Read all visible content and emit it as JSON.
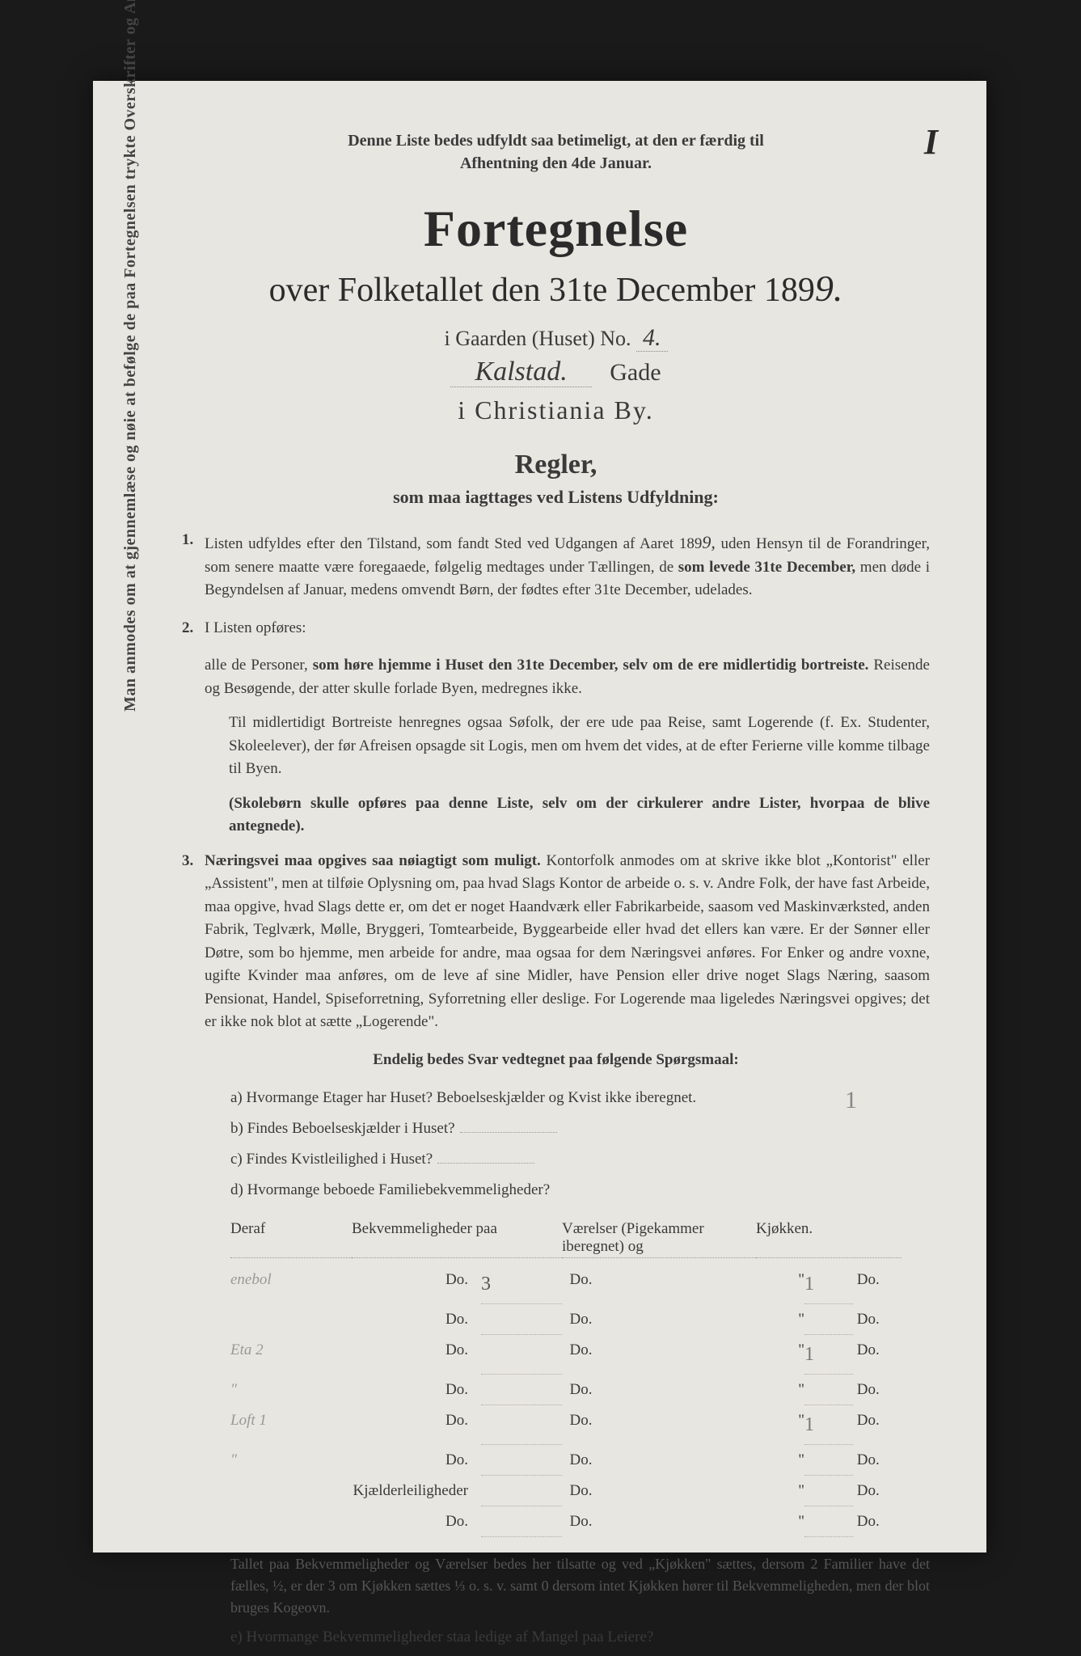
{
  "corner_number": "I",
  "top_note_line1": "Denne Liste bedes udfyldt saa betimeligt, at den er færdig til",
  "top_note_line2": "Afhentning den 4de Januar.",
  "title_main": "Fortegnelse",
  "title_over": "over Folketallet den 31te December 189",
  "year_digit": "9.",
  "gaard_prefix": "i Gaarden (Huset) No.",
  "gaard_no": "4.",
  "street_name": "Kalstad.",
  "street_suffix": "Gade",
  "city_line": "i Christiania By.",
  "regler_head": "Regler,",
  "regler_sub": "som maa iagttages ved Listens Udfyldning:",
  "rule1_num": "1.",
  "rule1_text_a": "Listen udfyldes efter den Tilstand, som fandt Sted ved Udgangen af Aaret 189",
  "rule1_year": "9,",
  "rule1_text_b": " uden Hensyn til de Forandringer, som senere maatte være foregaaede, følgelig medtages under Tællingen, de ",
  "rule1_bold": "som levede 31te December,",
  "rule1_text_c": " men døde i Begyndelsen af Januar, medens omvendt Børn, der fødtes efter 31te December, udelades.",
  "rule2_num": "2.",
  "rule2_text": "I Listen opføres:",
  "rule2_sub_a": "alle de Personer, ",
  "rule2_sub_bold": "som høre hjemme i Huset den 31te December, selv om de ere midlertidig bortreiste.",
  "rule2_sub_b": " Reisende og Besøgende, der atter skulle forlade Byen, medregnes ikke.",
  "rule2_ind1": "Til midlertidigt Bortreiste henregnes ogsaa Søfolk, der ere ude paa Reise, samt Logerende (f. Ex. Studenter, Skoleelever), der før Afreisen opsagde sit Logis, men om hvem det vides, at de efter Ferierne ville komme tilbage til Byen.",
  "rule2_ind2": "(Skolebørn skulle opføres paa denne Liste, selv om der cirkulerer andre Lister, hvorpaa de blive antegnede).",
  "rule3_num": "3.",
  "rule3_bold": "Næringsvei maa opgives saa nøiagtigt som muligt.",
  "rule3_text": " Kontorfolk anmodes om at skrive ikke blot „Kontorist\" eller „Assistent\", men at tilføie Oplysning om, paa hvad Slags Kontor de arbeide o. s. v. Andre Folk, der have fast Arbeide, maa opgive, hvad Slags dette er, om det er noget Haandværk eller Fabrikarbeide, saasom ved Maskinværksted, anden Fabrik, Teglværk, Mølle, Bryggeri, Tomtearbeide, Byggearbeide eller hvad det ellers kan være. Er der Sønner eller Døtre, som bo hjemme, men arbeide for andre, maa ogsaa for dem Næringsvei anføres. For Enker og andre voxne, ugifte Kvinder maa anføres, om de leve af sine Midler, have Pension eller drive noget Slags Næring, saasom Pensionat, Handel, Spiseforretning, Syforretning eller deslige. For Logerende maa ligeledes Næringsvei opgives; det er ikke nok blot at sætte „Logerende\".",
  "endelig": "Endelig bedes Svar vedtegnet paa følgende Spørgsmaal:",
  "q_a": "a) Hvormange Etager har Huset? Beboelseskjælder og Kvist ikke iberegnet.",
  "q_a_ans": "1",
  "q_b": "b) Findes Beboelseskjælder i Huset?",
  "q_c": "c) Findes Kvistleilighed i Huset?",
  "q_d": "d) Hvormange beboede Familiebekvemmeligheder?",
  "tbl_h1": "Deraf",
  "tbl_h2": "Bekvemmeligheder paa",
  "tbl_h3": "Værelser (Pigekammer iberegnet) og",
  "tbl_h4": "Kjøkken.",
  "rows": [
    {
      "c1": "enebol",
      "c2": "Do.",
      "n": "3",
      "c3": "Do.",
      "q": "\"",
      "kn": "1",
      "c5": "Do."
    },
    {
      "c1": "",
      "c2": "Do.",
      "n": "",
      "c3": "Do.",
      "q": "\"",
      "kn": "",
      "c5": "Do."
    },
    {
      "c1": "Eta 2",
      "c2": "Do.",
      "n": "",
      "c3": "Do.",
      "q": "\"",
      "kn": "1",
      "c5": "Do."
    },
    {
      "c1": "\"",
      "c2": "Do.",
      "n": "",
      "c3": "Do.",
      "q": "\"",
      "kn": "",
      "c5": "Do."
    },
    {
      "c1": "Loft 1",
      "c2": "Do.",
      "n": "",
      "c3": "Do.",
      "q": "\"",
      "kn": "1",
      "c5": "Do."
    },
    {
      "c1": "\"",
      "c2": "Do.",
      "n": "",
      "c3": "Do.",
      "q": "\"",
      "kn": "",
      "c5": "Do."
    },
    {
      "c1": "",
      "c2": "Kjælderleiligheder",
      "n": "",
      "c3": "Do.",
      "q": "\"",
      "kn": "",
      "c5": "Do."
    },
    {
      "c1": "",
      "c2": "Do.",
      "n": "",
      "c3": "Do.",
      "q": "\"",
      "kn": "",
      "c5": "Do."
    }
  ],
  "foot_note": "Tallet paa Bekvemmeligheder og Værelser bedes her tilsatte og ved „Kjøkken\" sættes, dersom 2 Familier have det fælles, ½, er der 3 om Kjøkken sættes ⅓ o. s. v. samt 0 dersom intet Kjøkken hører til Bekvemmeligheden, men der blot bruges Kogeovn.",
  "q_e": "e) Hvormange Bekvemmeligheder staa ledige af Mangel paa Leiere?",
  "vertical": "Man anmodes om at gjennemlæse og nøie at befølge de paa Fortegnelsen trykte Overskrifter og Anvisninger."
}
